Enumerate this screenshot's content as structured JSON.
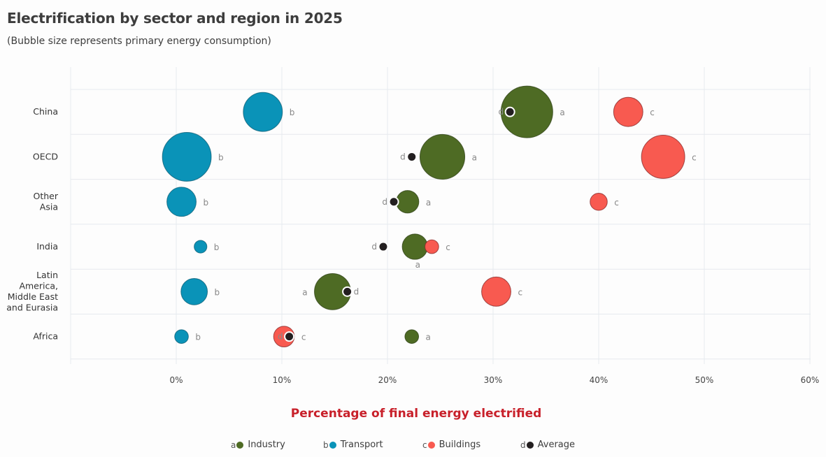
{
  "chart_data": {
    "type": "scatter",
    "title": "Electrification by sector and region in 2025",
    "subtitle": "(Bubble size represents primary energy consumption)",
    "xlabel": "Percentage of final energy electrified",
    "ylabel": "",
    "xlim": [
      -10,
      60
    ],
    "x_ticks": [
      0,
      10,
      20,
      30,
      40,
      50,
      60
    ],
    "x_tick_labels": [
      "0%",
      "10%",
      "20%",
      "30%",
      "40%",
      "50%",
      "60%"
    ],
    "grid": true,
    "legend_position": "bottom",
    "categories": [
      "China",
      "OECD",
      "Other Asia",
      "India",
      "Latin America, Middle East and Eurasia",
      "Africa"
    ],
    "category_label_lines": [
      [
        "China"
      ],
      [
        "OECD"
      ],
      [
        "Other",
        "Asia"
      ],
      [
        "India"
      ],
      [
        "Latin",
        "America,",
        "Middle East",
        "and Eurasia"
      ],
      [
        "Africa"
      ]
    ],
    "series": [
      {
        "name": "Industry",
        "letter": "a",
        "color": "#4e6b24",
        "values": [
          33.2,
          25.2,
          21.9,
          22.6,
          14.8,
          22.3
        ],
        "sizes": [
          100,
          75,
          19,
          24,
          49,
          7
        ]
      },
      {
        "name": "Transport",
        "letter": "b",
        "color": "#0a93b8",
        "values": [
          8.2,
          1.0,
          0.5,
          2.3,
          1.7,
          0.5
        ],
        "sizes": [
          57,
          89,
          32,
          6,
          26,
          7
        ]
      },
      {
        "name": "Buildings",
        "letter": "c",
        "color": "#f85a50",
        "values": [
          42.8,
          46.1,
          40.0,
          24.2,
          30.3,
          10.2
        ],
        "sizes": [
          32,
          70,
          11,
          7,
          32,
          16
        ]
      },
      {
        "name": "Average",
        "letter": "d",
        "color": "#231f20",
        "values": [
          31.6,
          22.3,
          20.6,
          19.6,
          16.2,
          10.7
        ],
        "sizes": null
      }
    ]
  }
}
